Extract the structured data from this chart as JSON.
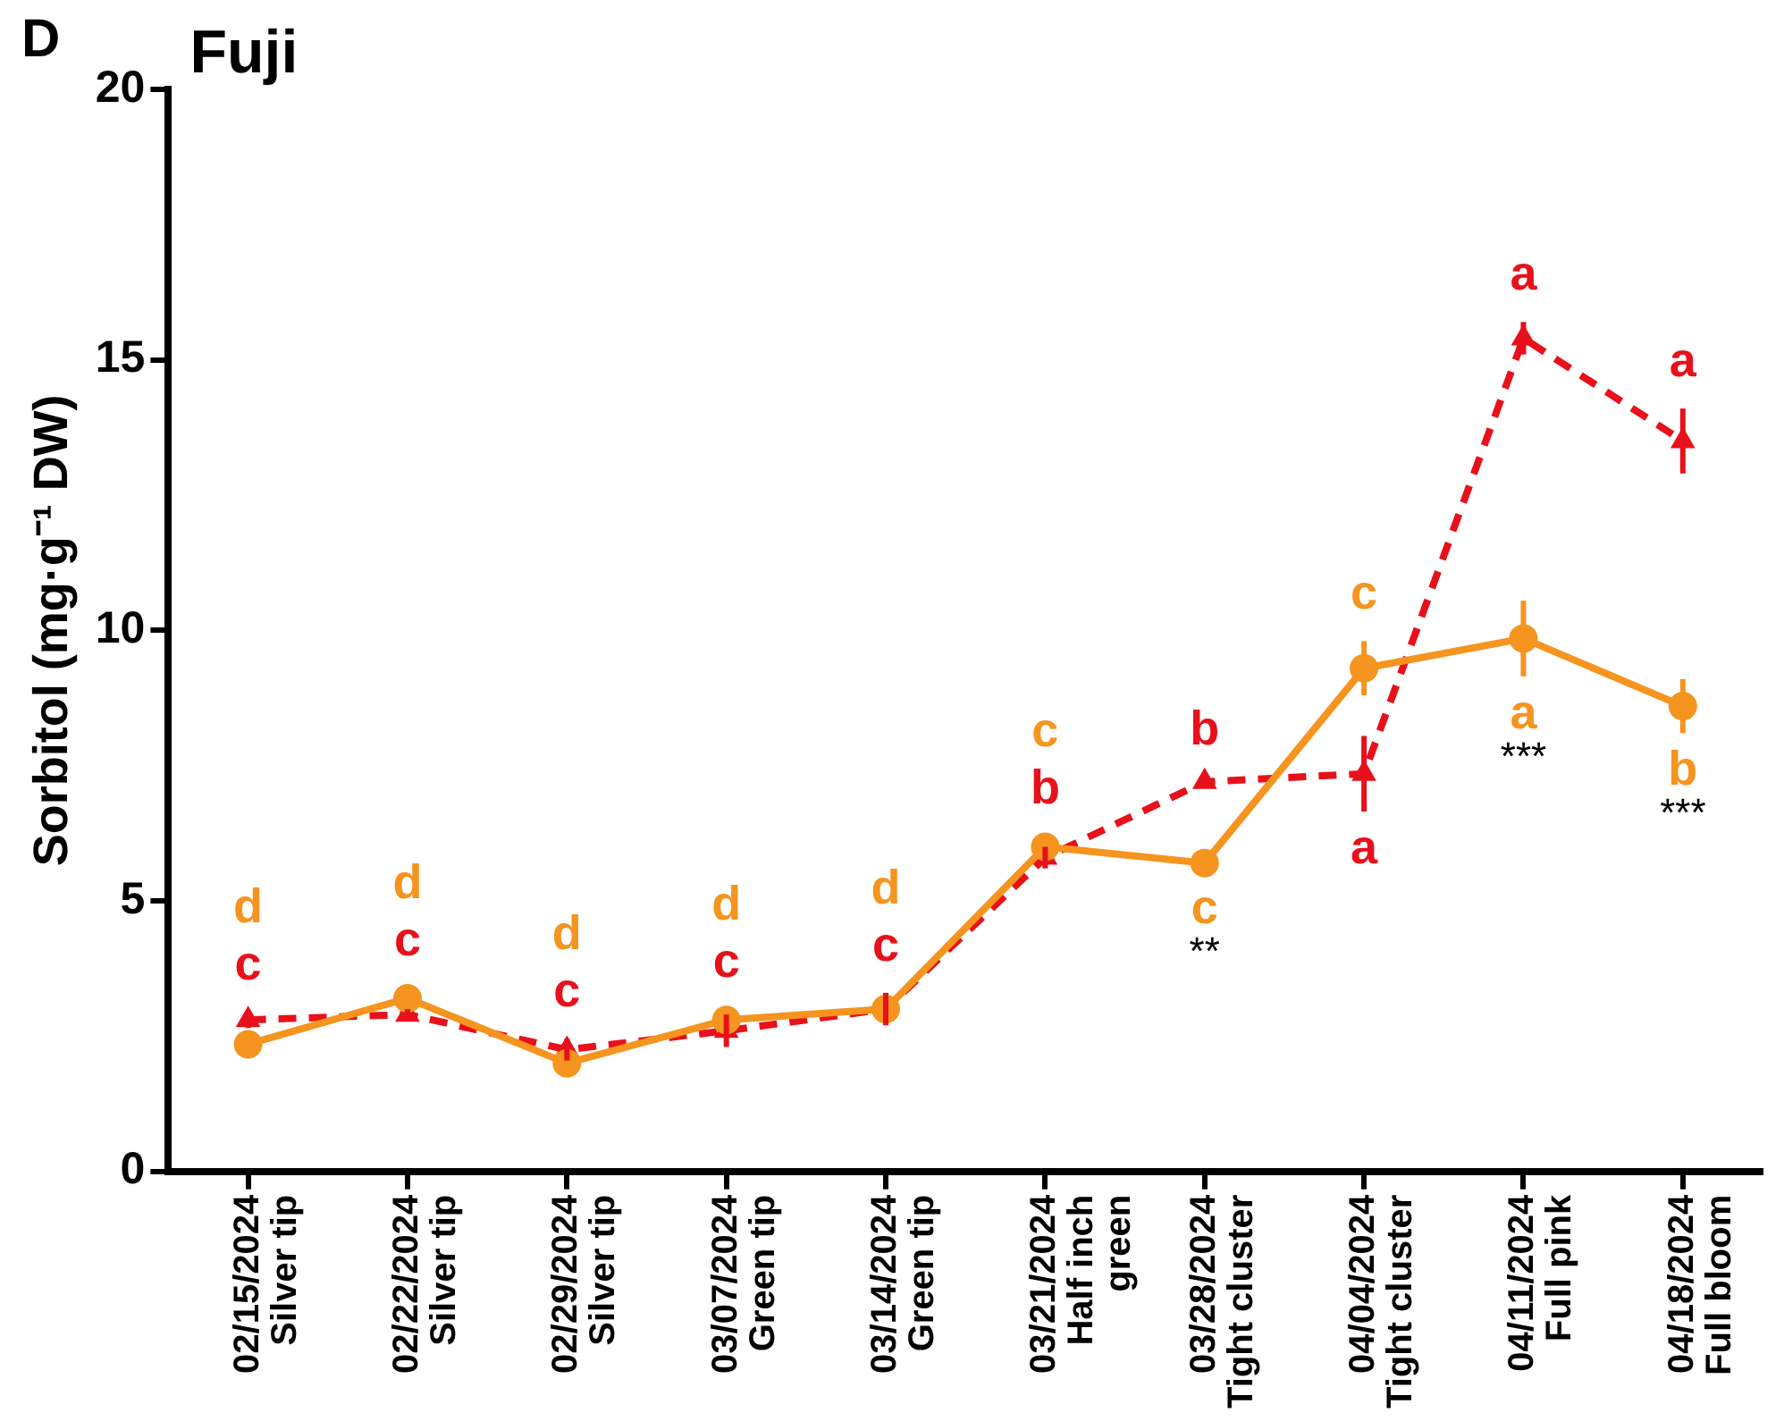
{
  "chart_data": {
    "type": "line",
    "title": "Fuji",
    "ylabel": "Sorbitol (mg·g⁻¹ DW)",
    "categories": [
      "02/15/2024\nSilver tip",
      "02/22/2024\nSilver tip",
      "02/29/2024\nSilver tip",
      "03/07/2024\nGreen tip",
      "03/14/2024\nGreen tip",
      "03/21/2024\nHalf inch\ngreen",
      "03/28/2024\nTight cluster",
      "04/04/2024\nTight cluster",
      "04/11/2024\nFull pink",
      "04/18/2024\nFull bloom"
    ],
    "series": [
      {
        "color": "#f5941e",
        "marker": "circle",
        "line_style": "solid",
        "values": [
          2.35,
          3.2,
          2.0,
          2.8,
          3.0,
          6.0,
          5.7,
          9.3,
          9.85,
          8.6
        ],
        "errors": [
          0.15,
          0.2,
          0.2,
          0.2,
          0.15,
          0.2,
          0.15,
          0.5,
          0.7,
          0.5
        ],
        "value_labels": [
          "d",
          "d",
          "d",
          "d",
          "d",
          "c",
          "c",
          "c",
          "a",
          "b"
        ]
      },
      {
        "color": "#e8101a",
        "marker": "triangle",
        "line_style": "dashed",
        "values": [
          2.8,
          2.9,
          2.25,
          2.6,
          3.0,
          5.8,
          7.2,
          7.35,
          15.4,
          13.5
        ],
        "errors": [
          0.15,
          0.1,
          0.2,
          0.3,
          0.3,
          0.2,
          0.1,
          0.7,
          0.3,
          0.6
        ],
        "value_labels": [
          "c",
          "c",
          "c",
          "c",
          "c",
          "b",
          "b",
          "a",
          "a",
          "a"
        ]
      }
    ],
    "ylim": [
      0,
      20
    ],
    "yticks": [
      0,
      5,
      10,
      15,
      20
    ],
    "grid": false,
    "legend": false,
    "annotations": [
      "D",
      {
        "text": "**",
        "x": "03/28/2024\nTight cluster",
        "y": 5.7
      },
      {
        "text": "***",
        "x": "04/11/2024\nFull pink",
        "y": 9.85
      },
      {
        "text": "***",
        "x": "04/18/2024\nFull bloom",
        "y": 8.6
      }
    ]
  }
}
